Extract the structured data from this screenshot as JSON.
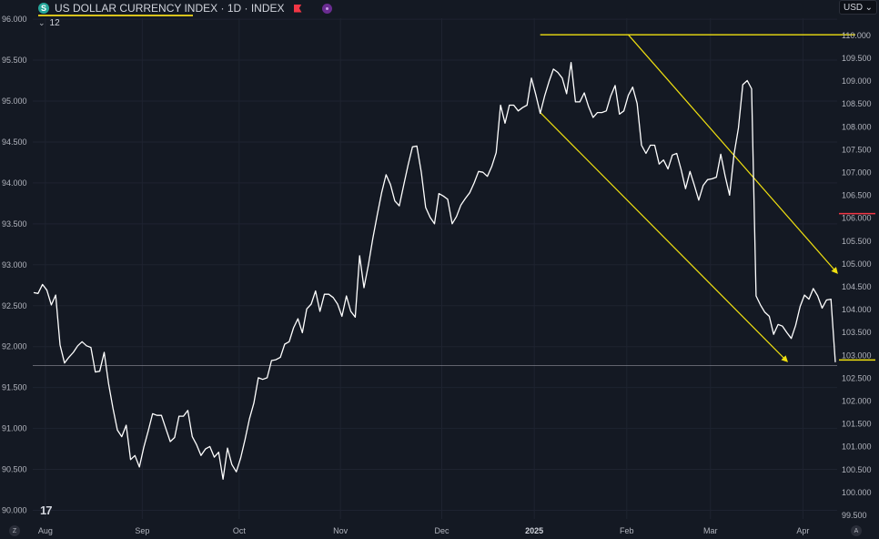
{
  "header": {
    "symbol_letter": "S",
    "title": "US DOLLAR CURRENCY INDEX · 1D · INDEX",
    "indicator_count": "12",
    "currency": "USD",
    "currency_arrow": "⌄",
    "tv_logo": "17",
    "bottom_left_label": "Z",
    "bottom_right_label": "A"
  },
  "chart_data": {
    "type": "line",
    "title": "US DOLLAR CURRENCY INDEX",
    "interval": "1D",
    "series": [
      {
        "values": [
          92.66,
          92.65,
          92.76,
          92.69,
          92.51,
          92.63,
          92.02,
          91.8,
          91.87,
          91.93,
          92.01,
          92.06,
          92.01,
          91.99,
          91.69,
          91.7,
          91.93,
          91.55,
          91.25,
          90.98,
          90.9,
          91.04,
          90.62,
          90.67,
          90.53,
          90.77,
          90.97,
          91.18,
          91.16,
          91.16,
          91.0,
          90.84,
          90.89,
          91.15,
          91.15,
          91.22,
          90.9,
          90.8,
          90.67,
          90.75,
          90.78,
          90.65,
          90.71,
          90.38,
          90.76,
          90.56,
          90.47,
          90.64,
          90.87,
          91.12,
          91.31,
          91.62,
          91.6,
          91.62,
          91.83,
          91.84,
          91.87,
          92.03,
          92.06,
          92.23,
          92.34,
          92.17,
          92.46,
          92.52,
          92.68,
          92.43,
          92.64,
          92.64,
          92.6,
          92.52,
          92.37,
          92.62,
          92.43,
          92.36,
          93.11,
          92.72,
          93.0,
          93.32,
          93.61,
          93.88,
          94.1,
          93.98,
          93.78,
          93.72,
          93.97,
          94.22,
          94.44,
          94.45,
          94.13,
          93.7,
          93.58,
          93.5,
          93.87,
          93.84,
          93.8,
          93.5,
          93.59,
          93.73,
          93.81,
          93.88,
          94.0,
          94.14,
          94.13,
          94.08,
          94.2,
          94.37,
          94.95,
          94.73,
          94.95,
          94.95,
          94.88,
          94.92,
          94.95,
          95.28,
          95.08,
          94.85,
          95.06,
          95.24,
          95.39,
          95.35,
          95.28,
          95.09,
          95.47,
          94.99,
          94.99,
          95.1,
          94.93,
          94.8,
          94.86,
          94.86,
          94.88,
          95.06,
          95.19,
          94.84,
          94.88,
          95.07,
          95.17,
          94.97,
          94.46,
          94.36,
          94.46,
          94.46,
          94.23,
          94.28,
          94.17,
          94.34,
          94.36,
          94.16,
          93.93,
          94.14,
          93.97,
          93.79,
          93.97,
          94.04,
          94.05,
          94.07,
          94.35,
          94.08,
          93.85,
          94.35,
          94.67,
          95.2,
          95.25,
          95.15,
          92.62,
          92.51,
          92.42,
          92.37,
          92.15,
          92.27,
          92.25,
          92.17,
          92.1,
          92.26,
          92.49,
          92.63,
          92.58,
          92.71,
          92.62,
          92.47,
          92.57,
          92.58,
          91.81
        ]
      }
    ],
    "x_tick_labels": [
      "Aug",
      "Sep",
      "Oct",
      "Nov",
      "Dec",
      "2025",
      "Feb",
      "Mar",
      "Apr"
    ],
    "left_axis": {
      "ylim": [
        89.9,
        96.1
      ],
      "tick_labels": [
        "96.000",
        "95.500",
        "95.000",
        "94.500",
        "94.000",
        "93.500",
        "93.000",
        "92.500",
        "92.000",
        "91.500",
        "91.000",
        "90.500",
        "90.000"
      ]
    },
    "right_axis": {
      "ylim": [
        99.4,
        110.6
      ],
      "tick_labels": [
        "110.000",
        "109.500",
        "109.000",
        "108.500",
        "108.000",
        "107.500",
        "107.000",
        "106.500",
        "106.000",
        "105.500",
        "105.000",
        "104.500",
        "104.000",
        "103.500",
        "103.000",
        "102.500",
        "102.000",
        "101.500",
        "101.000",
        "100.500",
        "100.000",
        "99.500"
      ]
    },
    "horizontal_price_line": 91.77,
    "grid": true,
    "colors": {
      "background": "#141923",
      "grid": "#1e2330",
      "line": "#ffffff",
      "drawings": "#f0e010",
      "marker_red": "#f23645",
      "text": "#b2b5be"
    }
  }
}
